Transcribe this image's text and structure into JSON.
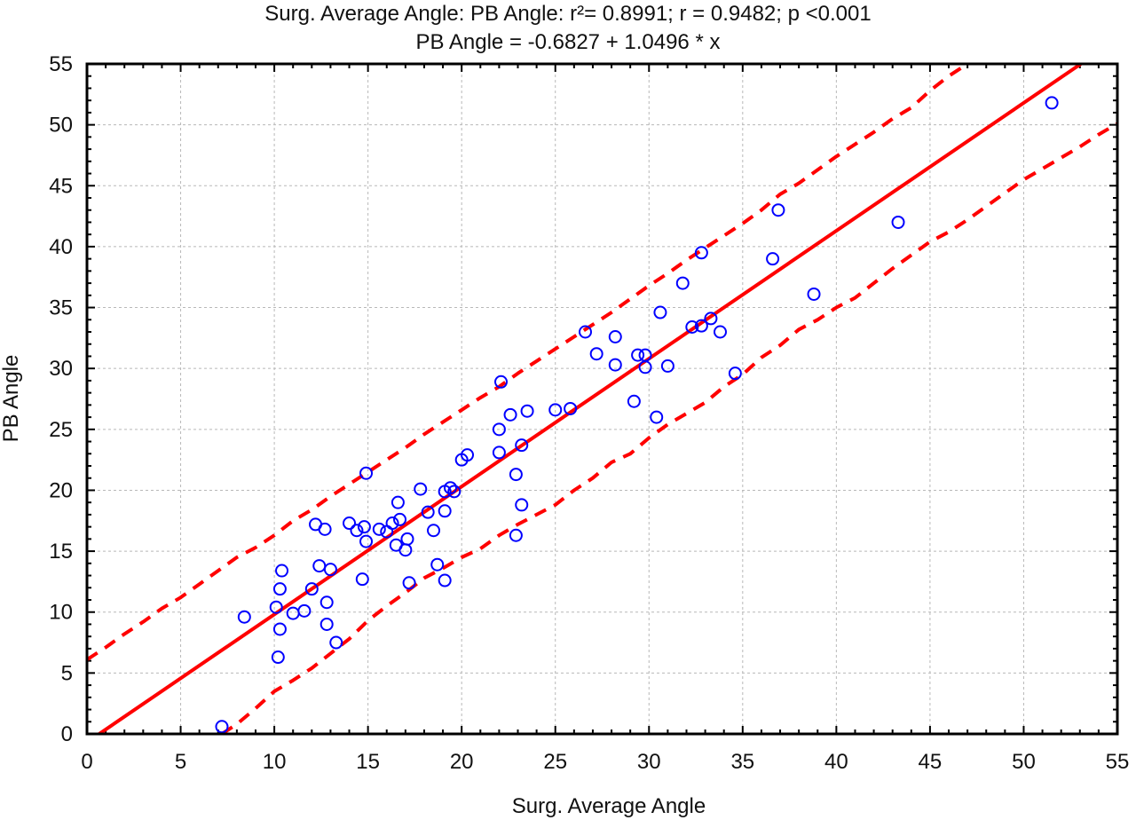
{
  "chart_data": {
    "type": "scatter",
    "title_line1": "Surg. Average Angle: PB Angle: r²= 0.8991; r = 0.9482; p <0.001",
    "title_line2": "PB Angle = -0.6827 + 1.0496 * x",
    "xlabel": "Surg. Average Angle",
    "ylabel": "PB Angle",
    "xlim": [
      0,
      55
    ],
    "ylim": [
      0,
      55
    ],
    "xticks": [
      "0",
      "5",
      "10",
      "15",
      "20",
      "25",
      "30",
      "35",
      "40",
      "45",
      "50",
      "55"
    ],
    "yticks": [
      "0",
      "5",
      "10",
      "15",
      "20",
      "25",
      "30",
      "35",
      "40",
      "45",
      "50",
      "55"
    ],
    "grid": true,
    "regression": {
      "intercept": -0.6827,
      "slope": 1.0496
    },
    "prediction_band": {
      "upper": [
        [
          0,
          6.1
        ],
        [
          1,
          7.1
        ],
        [
          2,
          8.2
        ],
        [
          3,
          9.2
        ],
        [
          4,
          10.3
        ],
        [
          5,
          11.2
        ],
        [
          6,
          12.3
        ],
        [
          7,
          13.4
        ],
        [
          8,
          14.5
        ],
        [
          9,
          15.3
        ],
        [
          10,
          16.3
        ],
        [
          11,
          17.5
        ],
        [
          12,
          18.4
        ],
        [
          13,
          19.5
        ],
        [
          14,
          20.5
        ],
        [
          15,
          21.5
        ],
        [
          16,
          22.5
        ],
        [
          17,
          23.5
        ],
        [
          18,
          24.6
        ],
        [
          19,
          25.6
        ],
        [
          20,
          26.6
        ],
        [
          21,
          27.6
        ],
        [
          22,
          28.5
        ],
        [
          23,
          29.6
        ],
        [
          24,
          30.6
        ],
        [
          25,
          31.6
        ],
        [
          26,
          32.6
        ],
        [
          27,
          33.6
        ],
        [
          28,
          34.6
        ],
        [
          29,
          35.7
        ],
        [
          30,
          36.8
        ],
        [
          31,
          37.8
        ],
        [
          32,
          38.9
        ],
        [
          33,
          39.9
        ],
        [
          34,
          40.9
        ],
        [
          35,
          41.9
        ],
        [
          36,
          43.0
        ],
        [
          37,
          44.3
        ],
        [
          38,
          45.2
        ],
        [
          39,
          46.3
        ],
        [
          40,
          47.4
        ],
        [
          41,
          48.4
        ],
        [
          42,
          49.4
        ],
        [
          43,
          50.5
        ],
        [
          44,
          51.4
        ],
        [
          45,
          52.8
        ],
        [
          46,
          54.0
        ],
        [
          47,
          55.0
        ]
      ],
      "lower": [
        [
          7.2,
          0
        ],
        [
          8,
          0.8
        ],
        [
          9,
          2.1
        ],
        [
          10,
          3.5
        ],
        [
          11,
          4.4
        ],
        [
          12,
          5.4
        ],
        [
          13,
          6.6
        ],
        [
          14,
          7.8
        ],
        [
          15,
          9.3
        ],
        [
          16,
          10.5
        ],
        [
          17,
          11.6
        ],
        [
          18,
          12.8
        ],
        [
          19,
          13.6
        ],
        [
          20,
          14.5
        ],
        [
          21,
          15.2
        ],
        [
          22,
          16.3
        ],
        [
          23,
          17.2
        ],
        [
          24,
          18.0
        ],
        [
          25,
          18.8
        ],
        [
          26,
          20.0
        ],
        [
          27,
          21.0
        ],
        [
          28,
          22.3
        ],
        [
          29,
          23.0
        ],
        [
          30,
          24.3
        ],
        [
          31,
          25.4
        ],
        [
          32,
          26.3
        ],
        [
          33,
          27.2
        ],
        [
          34,
          28.5
        ],
        [
          35,
          29.5
        ],
        [
          36,
          30.9
        ],
        [
          37,
          31.9
        ],
        [
          38,
          33.2
        ],
        [
          39,
          34.0
        ],
        [
          40,
          35.0
        ],
        [
          41,
          35.8
        ],
        [
          42,
          37.0
        ],
        [
          43,
          38.2
        ],
        [
          44,
          39.3
        ],
        [
          45,
          40.4
        ],
        [
          46,
          41.2
        ],
        [
          47,
          42.2
        ],
        [
          48,
          43.3
        ],
        [
          49,
          44.4
        ],
        [
          50,
          45.5
        ],
        [
          51,
          46.4
        ],
        [
          52,
          47.3
        ],
        [
          53,
          48.2
        ],
        [
          54,
          49.2
        ],
        [
          55,
          50.1
        ]
      ]
    },
    "points": [
      [
        8.4,
        9.6
      ],
      [
        7.2,
        0.6
      ],
      [
        10.1,
        10.4
      ],
      [
        10.2,
        6.3
      ],
      [
        10.3,
        8.6
      ],
      [
        10.3,
        11.9
      ],
      [
        10.4,
        13.4
      ],
      [
        11.0,
        9.9
      ],
      [
        11.6,
        10.1
      ],
      [
        12.0,
        11.9
      ],
      [
        12.2,
        17.2
      ],
      [
        12.4,
        13.8
      ],
      [
        12.7,
        16.8
      ],
      [
        12.8,
        10.8
      ],
      [
        12.8,
        9.0
      ],
      [
        13.0,
        13.5
      ],
      [
        13.3,
        7.5
      ],
      [
        14.0,
        17.3
      ],
      [
        14.4,
        16.7
      ],
      [
        14.7,
        12.7
      ],
      [
        14.8,
        17.0
      ],
      [
        14.9,
        15.8
      ],
      [
        14.9,
        21.4
      ],
      [
        15.6,
        16.8
      ],
      [
        16.0,
        16.6
      ],
      [
        16.3,
        17.3
      ],
      [
        16.5,
        15.5
      ],
      [
        16.6,
        19.0
      ],
      [
        16.7,
        17.6
      ],
      [
        17.0,
        15.1
      ],
      [
        17.1,
        16.0
      ],
      [
        17.2,
        12.4
      ],
      [
        17.8,
        20.1
      ],
      [
        18.2,
        18.2
      ],
      [
        18.5,
        16.7
      ],
      [
        18.7,
        13.9
      ],
      [
        19.1,
        12.6
      ],
      [
        19.1,
        18.3
      ],
      [
        19.1,
        19.9
      ],
      [
        19.4,
        20.2
      ],
      [
        19.6,
        19.9
      ],
      [
        20.0,
        22.5
      ],
      [
        20.3,
        22.9
      ],
      [
        22.0,
        25.0
      ],
      [
        22.0,
        23.1
      ],
      [
        22.1,
        28.9
      ],
      [
        22.6,
        26.2
      ],
      [
        22.9,
        21.3
      ],
      [
        22.9,
        16.3
      ],
      [
        23.2,
        18.8
      ],
      [
        23.2,
        23.7
      ],
      [
        23.5,
        26.5
      ],
      [
        25.0,
        26.6
      ],
      [
        25.8,
        26.7
      ],
      [
        26.6,
        33.0
      ],
      [
        27.2,
        31.2
      ],
      [
        28.2,
        32.6
      ],
      [
        28.2,
        30.3
      ],
      [
        29.2,
        27.3
      ],
      [
        29.4,
        31.1
      ],
      [
        29.8,
        31.1
      ],
      [
        29.8,
        30.1
      ],
      [
        30.4,
        26.0
      ],
      [
        30.6,
        34.6
      ],
      [
        31.0,
        30.2
      ],
      [
        31.8,
        37.0
      ],
      [
        32.3,
        33.4
      ],
      [
        32.8,
        39.5
      ],
      [
        32.8,
        33.5
      ],
      [
        33.3,
        34.1
      ],
      [
        33.8,
        33.0
      ],
      [
        34.6,
        29.6
      ],
      [
        36.6,
        39.0
      ],
      [
        36.9,
        43.0
      ],
      [
        38.8,
        36.1
      ],
      [
        43.3,
        42.0
      ],
      [
        51.5,
        51.8
      ]
    ],
    "colors": {
      "points": "#0000ff",
      "fit_line": "#ff0000",
      "band": "#ff0000",
      "grid": "#b8b8b8"
    }
  }
}
